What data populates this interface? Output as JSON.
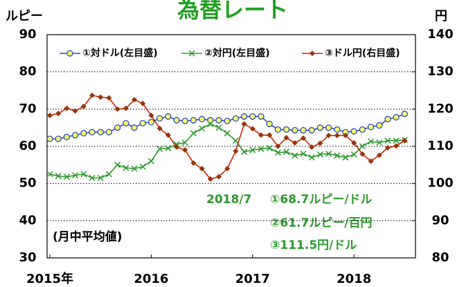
{
  "chart_data": {
    "type": "line",
    "title": "為替レート",
    "y_label": "ルピー",
    "y2_label": "円",
    "categories": [
      "2015年",
      null,
      null,
      null,
      null,
      null,
      null,
      null,
      null,
      null,
      null,
      null,
      "2016",
      null,
      null,
      null,
      null,
      null,
      null,
      null,
      null,
      null,
      null,
      null,
      "2017",
      null,
      null,
      null,
      null,
      null,
      null,
      null,
      null,
      null,
      null,
      null,
      "2018",
      null,
      null,
      null,
      null,
      null,
      null
    ],
    "ylim": [
      30,
      90
    ],
    "yticks": [
      30,
      40,
      50,
      60,
      70,
      80,
      90
    ],
    "y2lim": [
      80,
      140
    ],
    "y2ticks": [
      80,
      90,
      100,
      110,
      120,
      130,
      140
    ],
    "grid": true,
    "legend": "top",
    "series": [
      {
        "name": "①対ドル(左目盛)",
        "color": "#2a48c8",
        "marker": "circle",
        "marker_color": "#ffff66",
        "values": [
          62,
          62,
          62.5,
          63,
          63.5,
          63.8,
          63.8,
          63.8,
          65,
          66.2,
          65,
          66.2,
          66.5,
          67.5,
          68,
          67,
          66.8,
          67,
          67.3,
          67,
          67,
          66.8,
          67.5,
          68,
          68,
          68,
          66,
          64.5,
          64.5,
          64.3,
          64.3,
          64.3,
          65,
          65,
          64.5,
          63.8,
          64,
          64.5,
          65.2,
          65.6,
          67.3,
          67.8,
          68.7
        ]
      },
      {
        "name": "②対円(左目盛)",
        "color": "#2a9a2a",
        "marker": "x",
        "marker_color": "#2a9a2a",
        "values": [
          52.5,
          52,
          51.8,
          52.2,
          52.5,
          51.5,
          51.5,
          52.5,
          55,
          54.2,
          54,
          54.5,
          56,
          59.3,
          59.5,
          60.5,
          61,
          63.5,
          64.8,
          66,
          65,
          63.5,
          61.5,
          58.5,
          59,
          59.3,
          59.5,
          58.3,
          58.5,
          57.5,
          58,
          57,
          57.8,
          58,
          57.5,
          57,
          57.8,
          60,
          61.3,
          61,
          61.5,
          61.5,
          61.7
        ]
      },
      {
        "name": "③ドル円(右目盛)",
        "color": "#cc2200",
        "marker": "diamond",
        "marker_color": "#993300",
        "axis": "y2",
        "values": [
          118.3,
          118.8,
          120.2,
          119.5,
          120.7,
          123.7,
          123.2,
          123,
          120,
          120.2,
          122.5,
          121.5,
          118.3,
          114.8,
          113,
          109.8,
          109,
          105.5,
          104,
          101.2,
          101.8,
          104,
          108.7,
          116,
          114.7,
          113,
          113,
          110,
          112.3,
          110.9,
          112.2,
          109.8,
          110.8,
          112.9,
          112.9,
          112.9,
          110.9,
          107.9,
          106,
          107.6,
          109.6,
          110.1,
          111.5
        ]
      }
    ],
    "annotations": [
      "2018/7",
      "①68.7ルピー/ドル",
      "②61.7ルピー/百円",
      "③111.5円/ドル",
      "(月中平均値)"
    ]
  }
}
